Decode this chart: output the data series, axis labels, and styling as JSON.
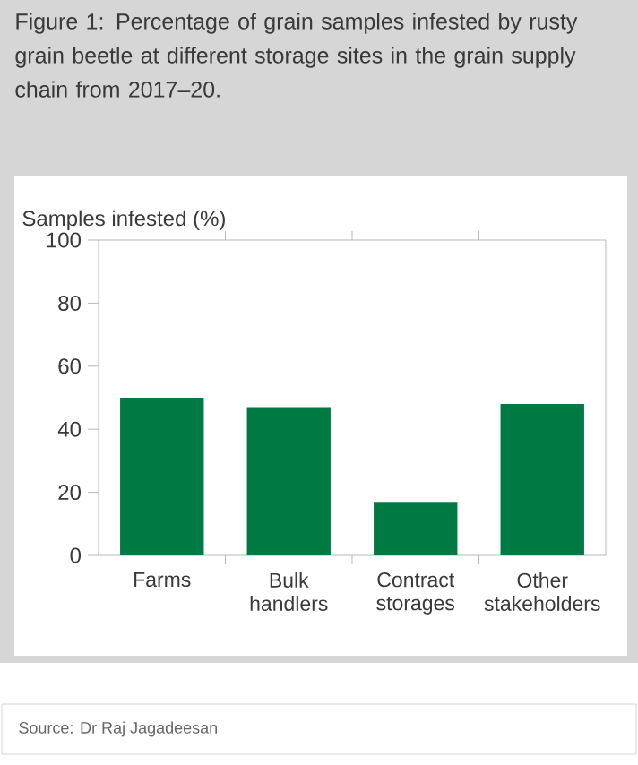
{
  "chart_data": {
    "type": "bar",
    "title": "Figure 1: Percentage of grain samples infested by rusty grain beetle at different storage sites in the grain supply chain from 2017–20.",
    "ylabel": "Samples infested (%)",
    "categories": [
      "Farms",
      "Bulk handlers",
      "Contract storages",
      "Other stakeholders"
    ],
    "values": [
      50,
      47,
      17,
      48
    ],
    "color": "#007a43",
    "ylim": [
      0,
      100
    ],
    "yticks": [
      0,
      20,
      40,
      60,
      80,
      100
    ],
    "annotations": [
      "Source: Dr Raj Jagadeesan"
    ]
  }
}
